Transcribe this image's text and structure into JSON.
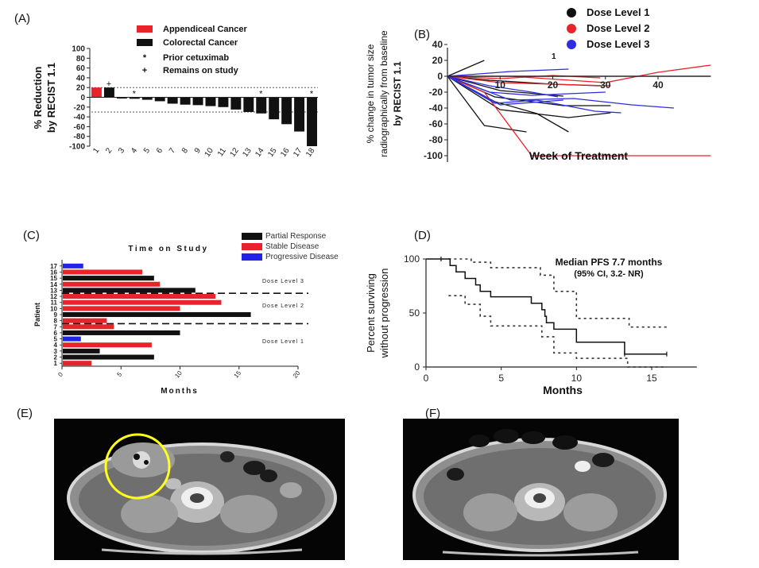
{
  "panels": {
    "a": {
      "letter": "(A)"
    },
    "b": {
      "letter": "(B)"
    },
    "c": {
      "letter": "(C)"
    },
    "d": {
      "letter": "(D)"
    },
    "e": {
      "letter": "(E)"
    },
    "f": {
      "letter": "(F)"
    }
  },
  "chart_data": [
    {
      "id": "A",
      "type": "bar",
      "ylabel": "% Reduction by RECIST 1.1",
      "ylabel_lines": [
        "% Reduction",
        "by  RECIST 1.1"
      ],
      "ylim": [
        -100,
        100
      ],
      "yticks": [
        100,
        80,
        60,
        40,
        20,
        0,
        -20,
        -40,
        -60,
        -80,
        -100
      ],
      "categories": [
        "1",
        "2",
        "3",
        "4",
        "5",
        "6",
        "7",
        "8",
        "9",
        "10",
        "11",
        "12",
        "13",
        "14",
        "15",
        "16",
        "17",
        "18"
      ],
      "values": [
        20,
        20,
        -2,
        -3,
        -5,
        -8,
        -13,
        -15,
        -16,
        -18,
        -20,
        -25,
        -30,
        -33,
        -45,
        -55,
        -70,
        -100
      ],
      "bar_colors": [
        "#e8232a",
        "#111111",
        "#111111",
        "#111111",
        "#111111",
        "#111111",
        "#111111",
        "#111111",
        "#111111",
        "#111111",
        "#111111",
        "#111111",
        "#111111",
        "#111111",
        "#111111",
        "#111111",
        "#111111",
        "#111111"
      ],
      "reference_lines": [
        20,
        -30
      ],
      "legend": [
        {
          "label": "Appendiceal Cancer",
          "color": "#e8232a",
          "marker": "rect"
        },
        {
          "label": "Colorectal Cancer",
          "color": "#111111",
          "marker": "rect"
        },
        {
          "label": "Prior cetuximab",
          "symbol": "*"
        },
        {
          "label": "Remains on study",
          "symbol": "+"
        }
      ],
      "bar_annotations": [
        {
          "index": 3,
          "symbol": "*"
        },
        {
          "index": 13,
          "symbol": "*"
        },
        {
          "index": 17,
          "symbol": "*"
        },
        {
          "index": 1,
          "symbol": "+"
        }
      ]
    },
    {
      "id": "B",
      "type": "line",
      "xlabel": "Week of Treatment",
      "ylabel_lines": [
        "% change in tumor size",
        "radiographically from baseline",
        "by  RECIST 1.1"
      ],
      "ylim": [
        -110,
        45
      ],
      "xlim": [
        0,
        50
      ],
      "yticks": [
        40,
        20,
        0,
        -20,
        -40,
        -60,
        -80,
        -100
      ],
      "xticks": [
        10,
        20,
        30,
        40
      ],
      "legend": [
        {
          "label": "Dose  Level  1",
          "color": "#111111"
        },
        {
          "label": "Dose  Level  2",
          "color": "#e8232a"
        },
        {
          "label": "Dose  Level  3",
          "color": "#2d2de0"
        }
      ],
      "stray_label": "1",
      "series": [
        {
          "dose": 1,
          "points": [
            [
              0,
              0
            ],
            [
              7,
              20
            ]
          ]
        },
        {
          "dose": 1,
          "points": [
            [
              0,
              0
            ],
            [
              8,
              -5
            ],
            [
              20,
              -10
            ],
            [
              29,
              -12
            ]
          ]
        },
        {
          "dose": 1,
          "points": [
            [
              0,
              0
            ],
            [
              10,
              -18
            ],
            [
              22,
              -25
            ]
          ]
        },
        {
          "dose": 1,
          "points": [
            [
              0,
              0
            ],
            [
              9,
              -26
            ],
            [
              22,
              -37
            ],
            [
              31,
              -37
            ]
          ]
        },
        {
          "dose": 1,
          "points": [
            [
              0,
              0
            ],
            [
              10,
              -42
            ],
            [
              23,
              -52
            ],
            [
              31,
              -46
            ]
          ]
        },
        {
          "dose": 1,
          "points": [
            [
              0,
              0
            ],
            [
              9,
              -32
            ],
            [
              17,
              -47
            ],
            [
              23,
              -70
            ]
          ]
        },
        {
          "dose": 1,
          "points": [
            [
              0,
              0
            ],
            [
              7,
              -62
            ],
            [
              15,
              -70
            ]
          ]
        },
        {
          "dose": 1,
          "points": [
            [
              0,
              0
            ],
            [
              50,
              0
            ]
          ]
        },
        {
          "dose": 2,
          "points": [
            [
              0,
              0
            ],
            [
              7,
              -20
            ],
            [
              16,
              -100
            ],
            [
              50,
              -100
            ]
          ]
        },
        {
          "dose": 2,
          "points": [
            [
              0,
              0
            ],
            [
              12,
              0
            ],
            [
              30,
              -8
            ],
            [
              40,
              5
            ],
            [
              50,
              14
            ]
          ]
        },
        {
          "dose": 2,
          "points": [
            [
              0,
              0
            ],
            [
              10,
              -8
            ],
            [
              20,
              -10
            ],
            [
              31,
              -12
            ]
          ]
        },
        {
          "dose": 2,
          "points": [
            [
              0,
              0
            ],
            [
              10,
              -3
            ],
            [
              20,
              1
            ],
            [
              29,
              -2
            ]
          ]
        },
        {
          "dose": 3,
          "points": [
            [
              0,
              0
            ],
            [
              12,
              6
            ],
            [
              23,
              9
            ]
          ]
        },
        {
          "dose": 3,
          "points": [
            [
              0,
              0
            ],
            [
              8,
              -12
            ],
            [
              16,
              -20
            ],
            [
              21,
              -26
            ]
          ]
        },
        {
          "dose": 3,
          "points": [
            [
              0,
              0
            ],
            [
              8,
              -20
            ],
            [
              16,
              -24
            ],
            [
              30,
              -20
            ]
          ]
        },
        {
          "dose": 3,
          "points": [
            [
              0,
              0
            ],
            [
              9,
              -34
            ],
            [
              17,
              -30
            ],
            [
              28,
              -44
            ],
            [
              33,
              -46
            ]
          ]
        },
        {
          "dose": 3,
          "points": [
            [
              0,
              0
            ],
            [
              10,
              -36
            ],
            [
              22,
              -30
            ]
          ]
        },
        {
          "dose": 3,
          "points": [
            [
              0,
              0
            ],
            [
              12,
              -30
            ],
            [
              24,
              -28
            ],
            [
              35,
              -36
            ],
            [
              43,
              -40
            ]
          ]
        }
      ]
    },
    {
      "id": "C",
      "type": "bar",
      "orientation": "horizontal",
      "title": "Time on Study",
      "xlabel": "Months",
      "ylabel": "Patient",
      "xlim": [
        0,
        20
      ],
      "xticks": [
        0,
        5,
        10,
        15,
        20
      ],
      "categories": [
        "1",
        "2",
        "3",
        "4",
        "5",
        "6",
        "7",
        "8",
        "9",
        "10",
        "11",
        "12",
        "13",
        "14",
        "15",
        "16",
        "17"
      ],
      "values": [
        2.5,
        7.8,
        3.2,
        7.6,
        1.6,
        10.0,
        4.4,
        3.8,
        16.0,
        10.0,
        13.5,
        13.0,
        11.3,
        8.3,
        7.8,
        6.8,
        1.8
      ],
      "response": [
        "SD",
        "PR",
        "PR",
        "SD",
        "PD",
        "PR",
        "SD",
        "SD",
        "PR",
        "SD",
        "SD",
        "SD",
        "PR",
        "SD",
        "PR",
        "SD",
        "PD"
      ],
      "response_colors": {
        "PR": "#111111",
        "SD": "#e8232a",
        "PD": "#2222e8"
      },
      "legend": [
        {
          "label": "Partial Response",
          "color": "#111111"
        },
        {
          "label": "Stable Disease",
          "color": "#e8232a"
        },
        {
          "label": "Progressive Disease",
          "color": "#2222e8"
        }
      ],
      "group_labels": [
        "Dose Level 3",
        "Dose Level 2",
        "Dose Level 1"
      ],
      "group_dividers_after_patient": [
        7,
        12
      ]
    },
    {
      "id": "D",
      "type": "line",
      "subtype": "kaplan-meier",
      "xlabel": "Months",
      "ylabel_lines": [
        "Percent surviving",
        "without progression"
      ],
      "xlim": [
        0,
        18
      ],
      "ylim": [
        0,
        100
      ],
      "xticks": [
        0,
        5,
        10,
        15
      ],
      "yticks": [
        0,
        50,
        100
      ],
      "annotation_lines": [
        "Median PFS 7.7 months",
        "(95%  CI, 3.2- NR)"
      ],
      "km": [
        [
          0,
          100
        ],
        [
          1.6,
          100
        ],
        [
          1.6,
          94
        ],
        [
          2.0,
          94
        ],
        [
          2.0,
          88
        ],
        [
          2.6,
          88
        ],
        [
          2.6,
          82
        ],
        [
          3.3,
          82
        ],
        [
          3.3,
          76
        ],
        [
          3.6,
          76
        ],
        [
          3.6,
          70
        ],
        [
          4.3,
          70
        ],
        [
          4.3,
          65
        ],
        [
          7.0,
          65
        ],
        [
          7.0,
          59
        ],
        [
          7.7,
          59
        ],
        [
          7.7,
          53
        ],
        [
          7.9,
          53
        ],
        [
          7.9,
          47
        ],
        [
          8.0,
          47
        ],
        [
          8.0,
          41
        ],
        [
          8.5,
          41
        ],
        [
          8.5,
          35
        ],
        [
          10.0,
          35
        ],
        [
          10.0,
          23
        ],
        [
          13.2,
          23
        ],
        [
          13.2,
          12
        ],
        [
          16.0,
          12
        ]
      ],
      "km_censor_x": [
        1.0,
        13.2,
        16.0
      ],
      "ci_upper": [
        [
          1.5,
          100
        ],
        [
          3,
          97
        ],
        [
          4.3,
          92
        ],
        [
          7.6,
          85
        ],
        [
          8.5,
          70
        ],
        [
          10.0,
          45
        ],
        [
          13.2,
          45
        ],
        [
          13.5,
          37
        ],
        [
          16,
          37
        ]
      ],
      "ci_lower": [
        [
          1.5,
          66
        ],
        [
          2.6,
          58
        ],
        [
          3.6,
          47
        ],
        [
          4.3,
          38
        ],
        [
          7.0,
          38
        ],
        [
          7.7,
          28
        ],
        [
          8.5,
          13
        ],
        [
          10.0,
          8
        ],
        [
          13.2,
          8
        ],
        [
          13.4,
          0
        ],
        [
          16,
          0
        ]
      ]
    }
  ]
}
